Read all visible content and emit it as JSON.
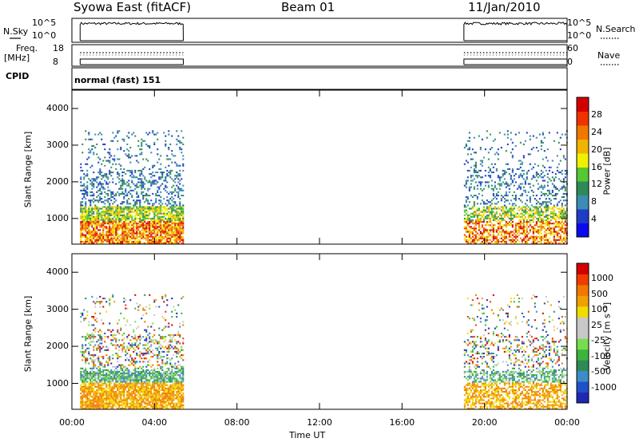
{
  "header": {
    "station": "Syowa East (fitACF)",
    "beam": "Beam 01",
    "date": "11/Jan/2010"
  },
  "top_panels": {
    "nsky_label": "N.Sky",
    "nsearch_label": "N.Search",
    "nsky_ticks": [
      "10^5",
      "10^0"
    ],
    "nsearch_ticks": [
      "10^5",
      "10^0"
    ],
    "freq_label_1": "Freq.",
    "freq_label_2": "[MHz]",
    "freq_ticks": [
      "18",
      "8"
    ],
    "nave_label": "Nave",
    "nave_ticks": [
      "60",
      "0"
    ],
    "cpid_label": "CPID",
    "cpid_text": "normal (fast) 151"
  },
  "colors": {
    "power_scale": [
      "#0a0af0",
      "#1e3cc8",
      "#3c8cb4",
      "#2e8b57",
      "#55c832",
      "#f0f000",
      "#f0b400",
      "#f07800",
      "#f03200",
      "#d20000"
    ],
    "velocity_scale": [
      "#1e28b4",
      "#1e50c8",
      "#3c8cc8",
      "#2e8b57",
      "#3cb43c",
      "#78dc50",
      "#c8c8c8",
      "#c8c8c8",
      "#f0dc00",
      "#f0a000",
      "#f07800",
      "#f03c00",
      "#d20000"
    ]
  },
  "chart_data": [
    {
      "type": "heatmap",
      "title": "Power",
      "xlabel": "Time UT",
      "ylabel": "Slant Range [km]",
      "x_ticks": [
        "00:00",
        "04:00",
        "08:00",
        "12:00",
        "16:00",
        "20:00",
        "00:00"
      ],
      "y_ticks": [
        "1000",
        "2000",
        "3000",
        "4000"
      ],
      "ylim": [
        300,
        4500
      ],
      "colorbar_label": "Power [dB]",
      "colorbar_ticks": [
        "4",
        "8",
        "12",
        "16",
        "20",
        "24",
        "28"
      ],
      "data_windows_ut_hours": [
        [
          0.4,
          5.4
        ],
        [
          19.0,
          24.0
        ]
      ],
      "strong_echo_band_km": [
        500,
        1300
      ]
    },
    {
      "type": "heatmap",
      "title": "Velocity",
      "xlabel": "Time UT",
      "ylabel": "Slant Range [km]",
      "x_ticks": [
        "00:00",
        "04:00",
        "08:00",
        "12:00",
        "16:00",
        "20:00",
        "00:00"
      ],
      "y_ticks": [
        "1000",
        "2000",
        "3000",
        "4000"
      ],
      "ylim": [
        300,
        4500
      ],
      "colorbar_label": "Velocity [m s⁻¹]",
      "colorbar_ticks": [
        "1000",
        "500",
        "100",
        "25",
        "-25",
        "-100",
        "-500",
        "-1000"
      ],
      "data_windows_ut_hours": [
        [
          0.4,
          5.4
        ],
        [
          19.0,
          24.0
        ]
      ]
    }
  ]
}
